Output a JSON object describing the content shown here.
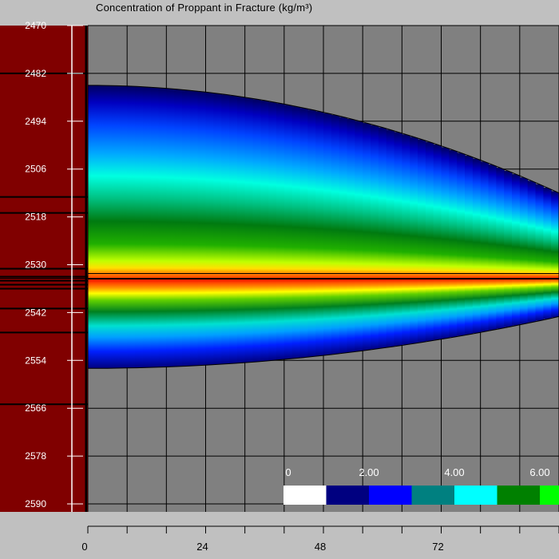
{
  "title": "Concentration of Proppant in Fracture (kg/m³)",
  "chart_data": {
    "type": "heatmap",
    "title": "Concentration of Proppant in Fracture (kg/m³)",
    "x_ticks": [
      "0",
      "24",
      "48",
      "72"
    ],
    "y_ticks": [
      "2470",
      "2482",
      "2494",
      "2506",
      "2518",
      "2530",
      "2542",
      "2554",
      "2566",
      "2578",
      "2590"
    ],
    "xlim": [
      0,
      96
    ],
    "ylim": [
      2470,
      2592
    ],
    "fracture_shape": {
      "top_depth_at_x0": 2485,
      "top_depth_at_x_max": 2512,
      "bottom_depth_at_x0": 2556,
      "bottom_depth_at_x_max": 2543,
      "peak_depth": 2533,
      "peak_value": 7.8
    },
    "layer_boundaries": [
      2482,
      2513,
      2517,
      2531,
      2533,
      2534,
      2535,
      2536,
      2541,
      2547,
      2565
    ],
    "legend": {
      "labels": [
        "0",
        "2.00",
        "4.00",
        "6.00"
      ],
      "colors": [
        "#ffffff",
        "#000080",
        "#0000ff",
        "#008080",
        "#00ffff",
        "#008000",
        "#00ff00"
      ]
    },
    "colors": {
      "background": "#808080",
      "grid": "#000000",
      "depth_track": "#800000",
      "frame": "#c0c0c0"
    },
    "grid": true
  }
}
